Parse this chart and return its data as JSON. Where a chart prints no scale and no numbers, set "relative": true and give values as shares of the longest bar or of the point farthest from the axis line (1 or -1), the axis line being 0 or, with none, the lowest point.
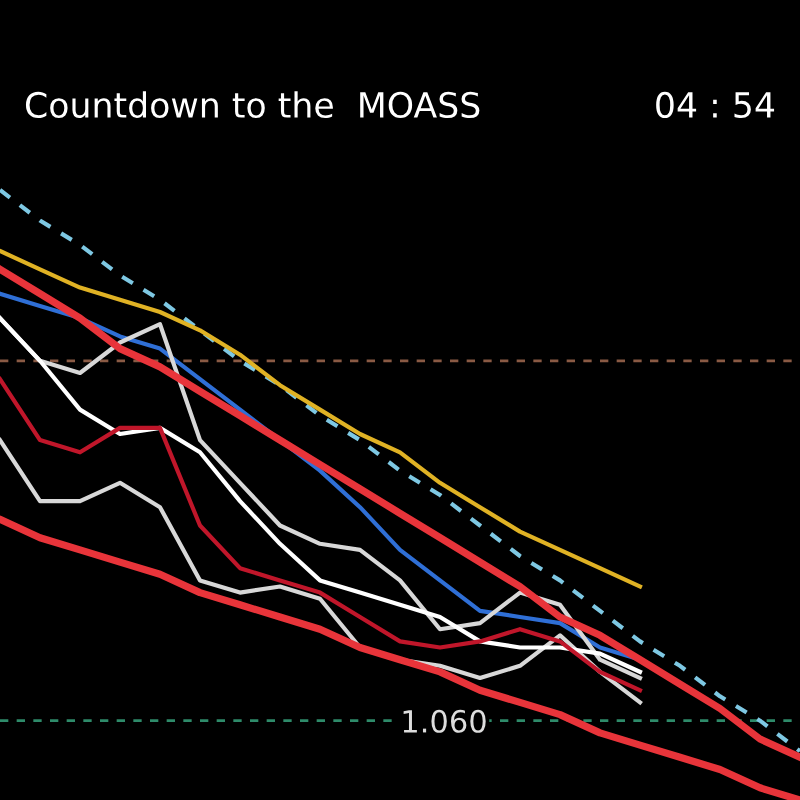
{
  "chart_data": {
    "type": "line",
    "title": "Countdown to the  MOASS",
    "annotations": [
      "04 : 54",
      "1.060"
    ],
    "relative": true,
    "legend": false,
    "marker": "none",
    "categories": [
      null,
      null,
      null,
      null,
      null,
      null,
      null,
      null,
      null,
      null,
      null,
      null,
      null,
      null,
      null,
      null,
      null,
      null,
      null,
      null,
      null
    ],
    "series": [
      {
        "color": "#7ec8e3",
        "line_style": "dashed",
        "values": [
          1.0,
          0.95,
          0.91,
          0.86,
          0.82,
          0.77,
          0.72,
          0.68,
          0.63,
          0.59,
          0.54,
          0.5,
          0.45,
          0.4,
          0.36,
          0.31,
          0.26,
          0.22,
          0.17,
          0.13,
          0.08
        ]
      },
      {
        "color": "#e0b224",
        "values": [
          0.9,
          0.87,
          0.84,
          0.82,
          0.8,
          0.77,
          0.73,
          0.68,
          0.64,
          0.6,
          0.57,
          0.52,
          0.48,
          0.44,
          0.41,
          0.38,
          0.35,
          null,
          null,
          null,
          null
        ]
      },
      {
        "color": "#2f6fd6",
        "values": [
          0.83,
          0.81,
          0.79,
          0.76,
          0.74,
          0.69,
          0.64,
          0.59,
          0.54,
          0.48,
          0.41,
          0.36,
          0.31,
          0.3,
          0.29,
          0.25,
          0.23,
          null,
          null,
          null,
          null
        ]
      },
      {
        "color": "#d8d8d8",
        "values": [
          0.79,
          0.72,
          0.7,
          0.75,
          0.78,
          0.59,
          0.52,
          0.45,
          0.42,
          0.41,
          0.36,
          0.28,
          0.29,
          0.34,
          0.32,
          0.23,
          0.2,
          null,
          null,
          null,
          null
        ]
      },
      {
        "color": "#d8d8d8",
        "values": [
          0.59,
          0.49,
          0.49,
          0.52,
          0.48,
          0.36,
          0.34,
          0.35,
          0.33,
          0.25,
          0.23,
          0.22,
          0.2,
          0.22,
          0.27,
          0.21,
          0.16,
          null,
          null,
          null,
          null
        ]
      },
      {
        "color": "#ffffff",
        "values": [
          0.79,
          0.72,
          0.64,
          0.6,
          0.61,
          0.57,
          0.49,
          0.42,
          0.36,
          0.34,
          0.32,
          0.3,
          0.26,
          0.25,
          0.25,
          0.24,
          0.21,
          null,
          null,
          null,
          null
        ]
      },
      {
        "color": "#c0162a",
        "values": [
          0.69,
          0.59,
          0.57,
          0.61,
          0.61,
          0.45,
          0.38,
          0.36,
          0.34,
          0.3,
          0.26,
          0.25,
          0.26,
          0.28,
          0.26,
          0.21,
          0.18,
          null,
          null,
          null,
          null
        ]
      },
      {
        "color": "#e8343a",
        "values": [
          0.87,
          0.83,
          0.79,
          0.74,
          0.71,
          0.67,
          0.63,
          0.59,
          0.55,
          0.51,
          0.47,
          0.43,
          0.39,
          0.35,
          0.3,
          0.27,
          0.23,
          0.19,
          0.15,
          0.1,
          0.07
        ]
      },
      {
        "color": "#e8343a",
        "values": [
          0.46,
          0.43,
          0.41,
          0.39,
          0.37,
          0.34,
          0.32,
          0.3,
          0.28,
          0.25,
          0.23,
          0.21,
          0.18,
          0.16,
          0.14,
          0.11,
          0.09,
          0.07,
          0.05,
          0.02,
          0.0
        ]
      }
    ],
    "ref_lines": [
      {
        "axis": "y",
        "value": 0.72,
        "color": "#8a5a44",
        "line_style": "dashed"
      },
      {
        "axis": "y",
        "value": 0.13,
        "color": "#2e8b6a",
        "line_style": "dashed"
      }
    ]
  }
}
